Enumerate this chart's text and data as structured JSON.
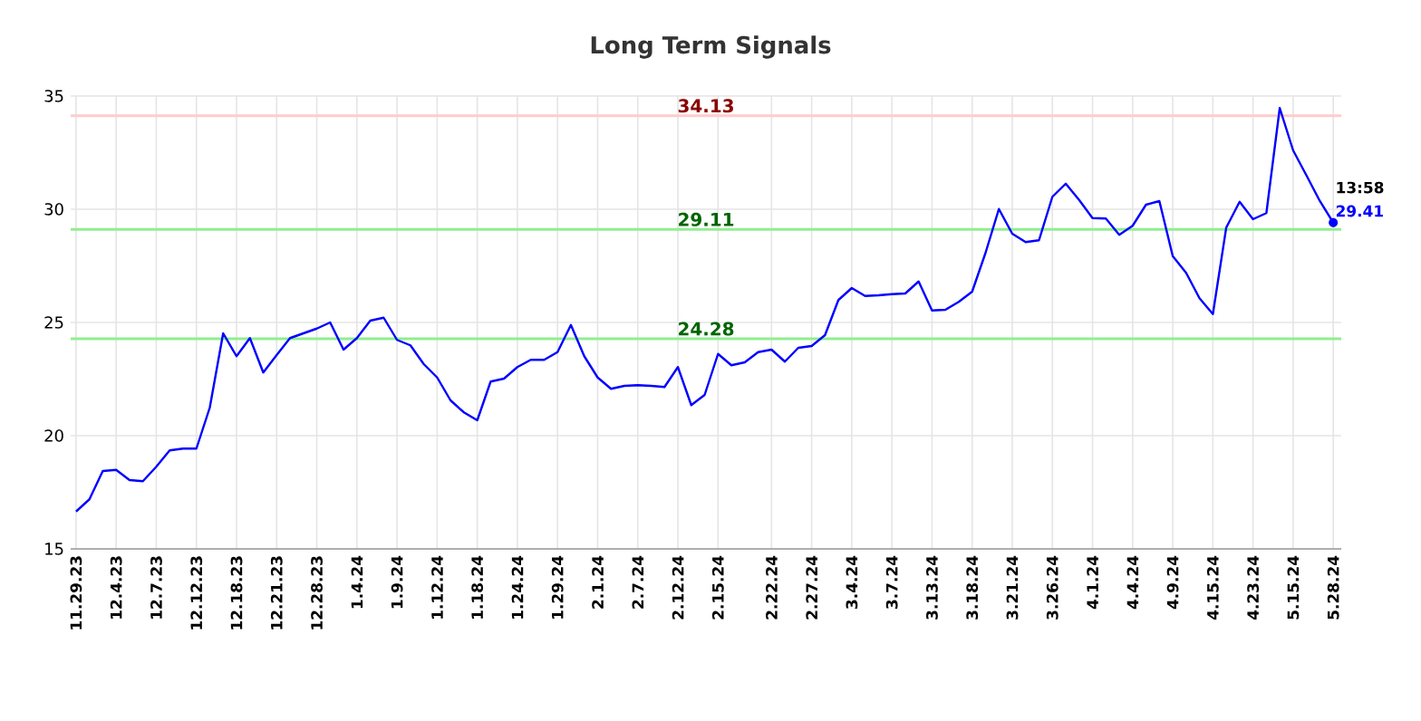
{
  "chart_data": {
    "type": "line",
    "title": "Long Term Signals",
    "categories": [
      "11.29.23",
      null,
      null,
      "12.4.23",
      null,
      null,
      "12.7.23",
      null,
      null,
      "12.12.23",
      null,
      null,
      "12.18.23",
      null,
      null,
      "12.21.23",
      null,
      null,
      "12.28.23",
      null,
      null,
      "1.4.24",
      null,
      null,
      "1.9.24",
      null,
      null,
      "1.12.24",
      null,
      null,
      "1.18.24",
      null,
      null,
      "1.24.24",
      null,
      null,
      "1.29.24",
      null,
      null,
      "2.1.24",
      null,
      null,
      "2.7.24",
      null,
      null,
      "2.12.24",
      null,
      null,
      "2.15.24",
      null,
      null,
      null,
      "2.22.24",
      null,
      null,
      "2.27.24",
      null,
      null,
      "3.4.24",
      null,
      null,
      "3.7.24",
      null,
      null,
      "3.13.24",
      null,
      null,
      "3.18.24",
      null,
      null,
      "3.21.24",
      null,
      null,
      "3.26.24",
      null,
      null,
      "4.1.24",
      null,
      null,
      "4.4.24",
      null,
      null,
      "4.9.24",
      null,
      null,
      "4.15.24",
      null,
      null,
      "4.23.24",
      null,
      null,
      "5.15.24",
      null,
      null,
      "5.28.24"
    ],
    "series": [
      {
        "color": "#0000ff",
        "values": [
          16.65,
          17.19,
          18.44,
          18.49,
          18.04,
          17.99,
          18.63,
          19.35,
          19.43,
          19.43,
          21.24,
          24.52,
          23.51,
          24.31,
          22.79,
          23.56,
          24.31,
          24.52,
          24.73,
          25.0,
          23.8,
          24.31,
          25.08,
          25.21,
          24.23,
          23.99,
          23.16,
          22.57,
          21.56,
          21.03,
          20.68,
          22.39,
          22.52,
          23.03,
          23.35,
          23.35,
          23.69,
          24.89,
          23.51,
          22.57,
          22.07,
          22.2,
          22.23,
          22.2,
          22.15,
          23.03,
          21.35,
          21.8,
          23.61,
          23.11,
          23.24,
          23.69,
          23.8,
          23.27,
          23.88,
          23.96,
          24.44,
          25.99,
          26.52,
          26.17,
          26.2,
          26.25,
          26.28,
          26.81,
          25.53,
          25.56,
          25.91,
          26.36,
          28.07,
          30.01,
          28.92,
          28.55,
          28.63,
          30.55,
          31.13,
          30.41,
          29.61,
          29.59,
          28.87,
          29.27,
          30.2,
          30.36,
          27.93,
          27.19,
          26.07,
          25.37,
          29.19,
          30.33,
          29.56,
          29.83,
          34.47,
          32.6,
          31.49,
          30.36,
          29.41
        ]
      }
    ],
    "ylim": [
      15,
      35
    ],
    "yticks": [
      15,
      20,
      25,
      30,
      35
    ],
    "ref_lines": [
      {
        "axis": "y",
        "value": 34.13,
        "label": "34.13",
        "color": "#ffcccc"
      },
      {
        "axis": "y",
        "value": 29.11,
        "label": "29.11",
        "color": "#90ee90"
      },
      {
        "axis": "y",
        "value": 24.28,
        "label": "24.28",
        "color": "#90ee90"
      }
    ],
    "annotations": [
      "13:58",
      "29.41"
    ],
    "grid": true,
    "marker": "none",
    "line_style": "solid"
  }
}
